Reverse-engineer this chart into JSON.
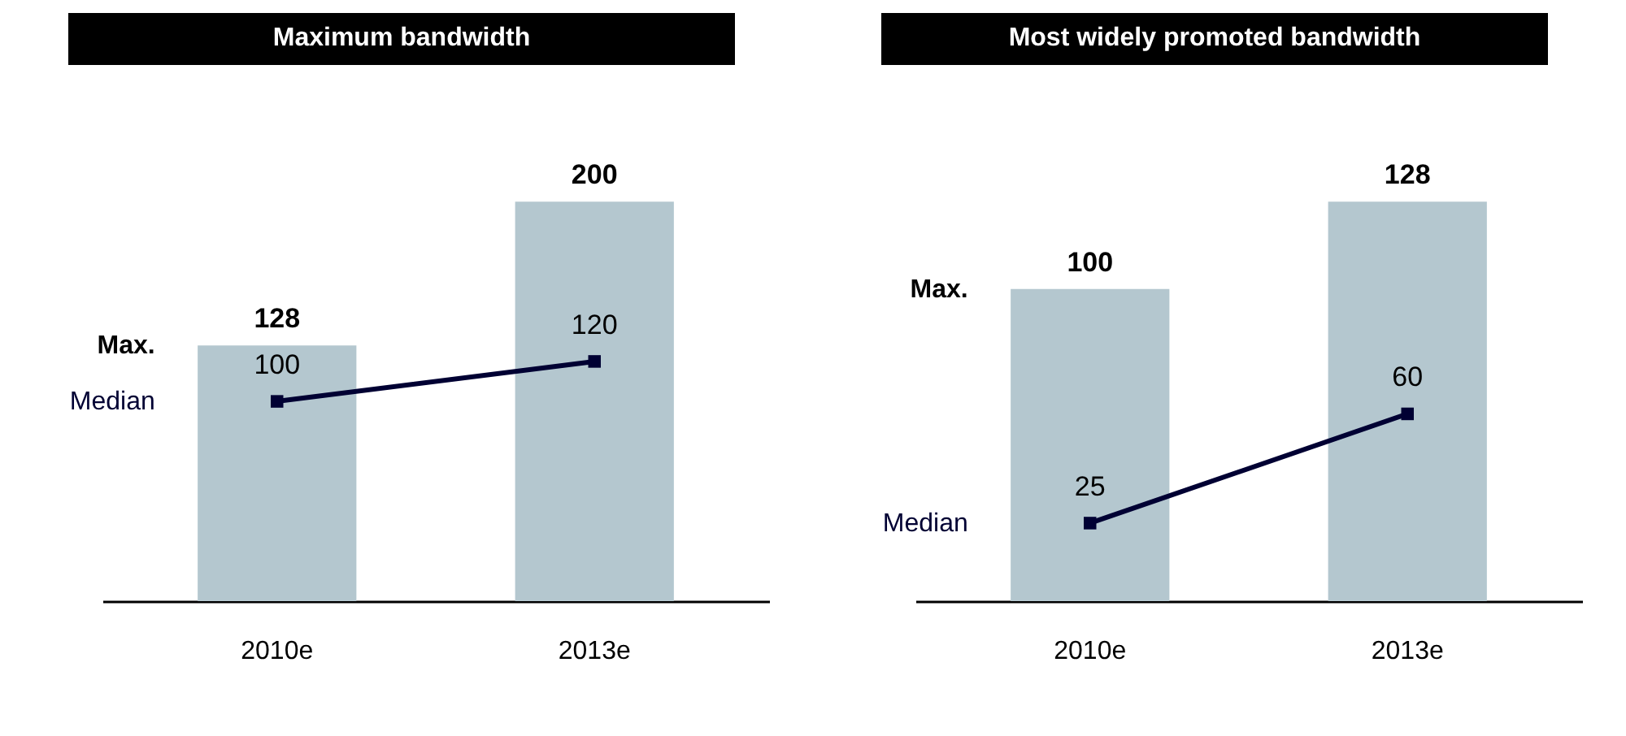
{
  "chart_data": [
    {
      "type": "bar",
      "title": "Maximum bandwidth",
      "categories": [
        "2010e",
        "2013e"
      ],
      "legend": "left",
      "data_labels": true,
      "marker": "square",
      "series": [
        {
          "name": "Max.",
          "color": "#b4c7cf",
          "values": [
            128,
            200
          ]
        },
        {
          "name": "Median",
          "type": "line",
          "color": "#000033",
          "values": [
            100,
            120
          ]
        }
      ]
    },
    {
      "type": "bar",
      "title": "Most widely promoted bandwidth",
      "categories": [
        "2010e",
        "2013e"
      ],
      "legend": "left",
      "data_labels": true,
      "marker": "square",
      "series": [
        {
          "name": "Max.",
          "color": "#b4c7cf",
          "values": [
            100,
            128
          ]
        },
        {
          "name": "Median",
          "type": "line",
          "color": "#000033",
          "values": [
            25,
            60
          ]
        }
      ]
    }
  ]
}
